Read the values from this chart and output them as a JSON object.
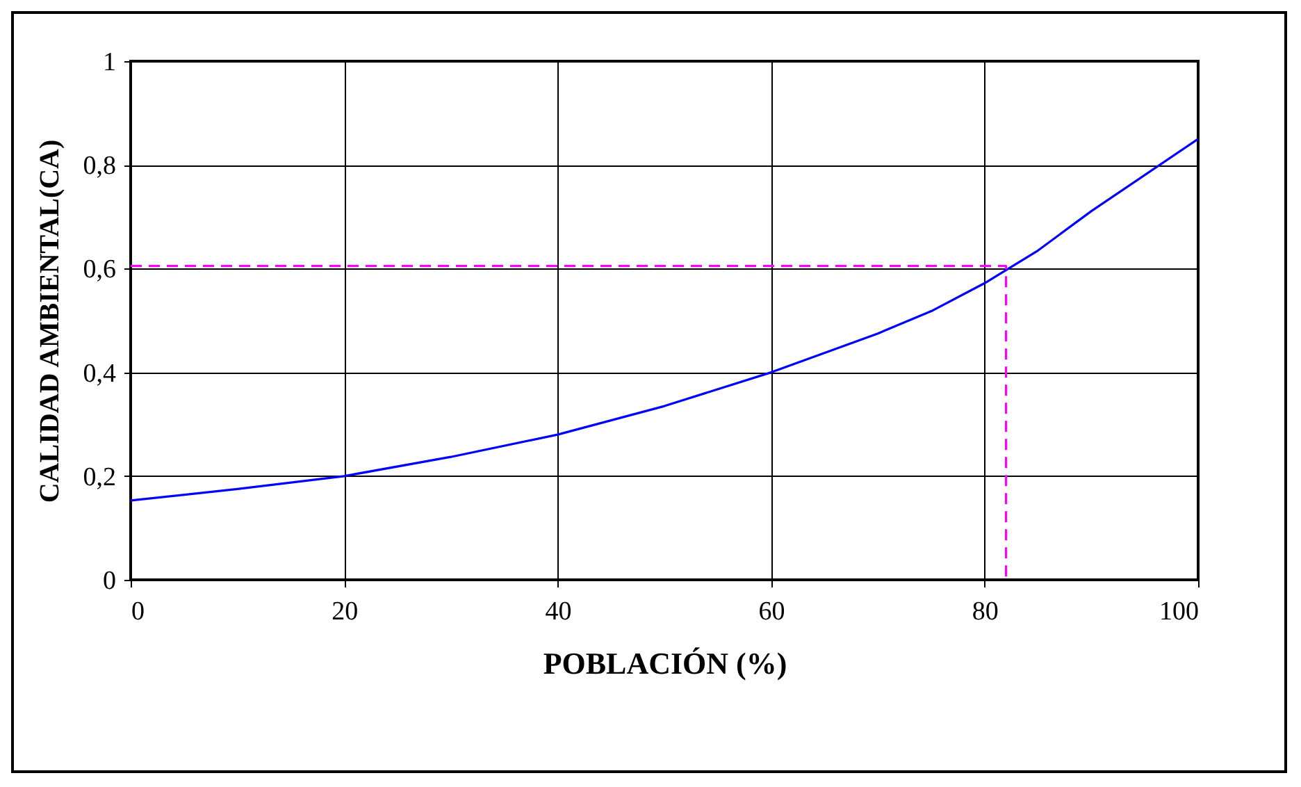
{
  "chart_data": {
    "type": "line",
    "xlabel": "POBLACIÓN (%)",
    "ylabel": "CALIDAD AMBIENTAL(CA)",
    "xlim": [
      0,
      100
    ],
    "xticks": [
      0,
      20,
      40,
      60,
      80,
      100
    ],
    "ylim": [
      0,
      1
    ],
    "yticks": [
      {
        "value": 0,
        "label": "0"
      },
      {
        "value": 0.2,
        "label": "0,2"
      },
      {
        "value": 0.4,
        "label": "0,4"
      },
      {
        "value": 0.6,
        "label": "0,6"
      },
      {
        "value": 0.8,
        "label": "0,8"
      },
      {
        "value": 1,
        "label": "1"
      }
    ],
    "grid": true,
    "series": [
      {
        "color": "#0000ff",
        "line_style": "solid",
        "x": [
          0,
          10,
          20,
          30,
          40,
          50,
          60,
          70,
          75,
          80,
          85,
          90,
          100
        ],
        "values": [
          0.153,
          0.175,
          0.2,
          0.237,
          0.28,
          0.335,
          0.4,
          0.475,
          0.518,
          0.572,
          0.635,
          0.711,
          0.85
        ]
      },
      {
        "color": "#ff00ff",
        "line_style": "dashed",
        "x": [
          0,
          82,
          82
        ],
        "values": [
          0.605,
          0.605,
          0
        ]
      }
    ]
  }
}
